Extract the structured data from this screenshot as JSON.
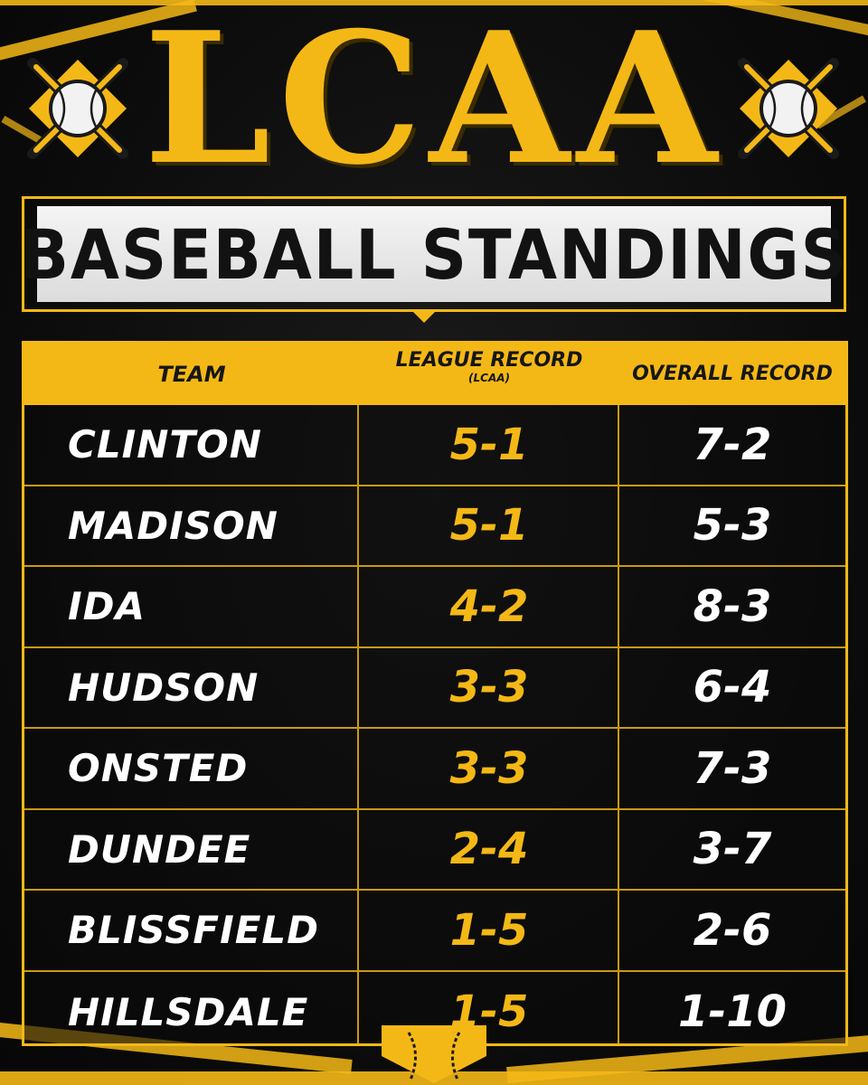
{
  "header": {
    "title": "LCAA",
    "subtitle": "BASEBALL STANDINGS"
  },
  "table": {
    "columns": {
      "team": "TEAM",
      "league": "LEAGUE RECORD",
      "league_sub": "(LCAA)",
      "overall": "OVERALL RECORD"
    },
    "rows": [
      {
        "team": "CLINTON",
        "league": "5-1",
        "overall": "7-2"
      },
      {
        "team": "MADISON",
        "league": "5-1",
        "overall": "5-3"
      },
      {
        "team": "IDA",
        "league": "4-2",
        "overall": "8-3"
      },
      {
        "team": "HUDSON",
        "league": "3-3",
        "overall": "6-4"
      },
      {
        "team": "ONSTED",
        "league": "3-3",
        "overall": "7-3"
      },
      {
        "team": "DUNDEE",
        "league": "2-4",
        "overall": "3-7"
      },
      {
        "team": "BLISSFIELD",
        "league": "1-5",
        "overall": "2-6"
      },
      {
        "team": "HILLSDALE",
        "league": "1-5",
        "overall": "1-10"
      }
    ]
  },
  "colors": {
    "accent": "#f4b816",
    "background": "#0d0d0d",
    "text": "#ffffff"
  },
  "icons": {
    "emblem": "crossed-bats-baseball-icon",
    "plate": "home-plate-baseball-icon"
  }
}
